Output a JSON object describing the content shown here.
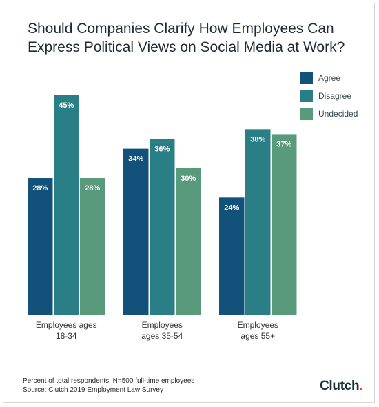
{
  "title": "Should Companies Clarify How Employees Can Express Political Views on Social Media at Work?",
  "footnote_line1": "Percent of total respondents; N=500 full-time employees",
  "footnote_line2": "Source: Clutch 2019 Employment Law Survey",
  "logo_text": "Clutch",
  "chart_data": {
    "type": "bar",
    "title": "Should Companies Clarify How Employees Can Express Political Views on Social Media at Work?",
    "categories": [
      [
        "Employees ages",
        "18-34"
      ],
      [
        "Employees",
        "ages 35-54"
      ],
      [
        "Employees",
        "ages 55+"
      ]
    ],
    "series": [
      {
        "name": "Agree",
        "color": "#12527a",
        "values": [
          28,
          34,
          24
        ]
      },
      {
        "name": "Disagree",
        "color": "#2a7f86",
        "values": [
          45,
          36,
          38
        ]
      },
      {
        "name": "Undecided",
        "color": "#5a9a7c",
        "values": [
          28,
          30,
          37
        ]
      }
    ],
    "value_suffix": "%",
    "ylim": [
      0,
      45
    ],
    "grid": false,
    "legend_position": "top-right"
  }
}
